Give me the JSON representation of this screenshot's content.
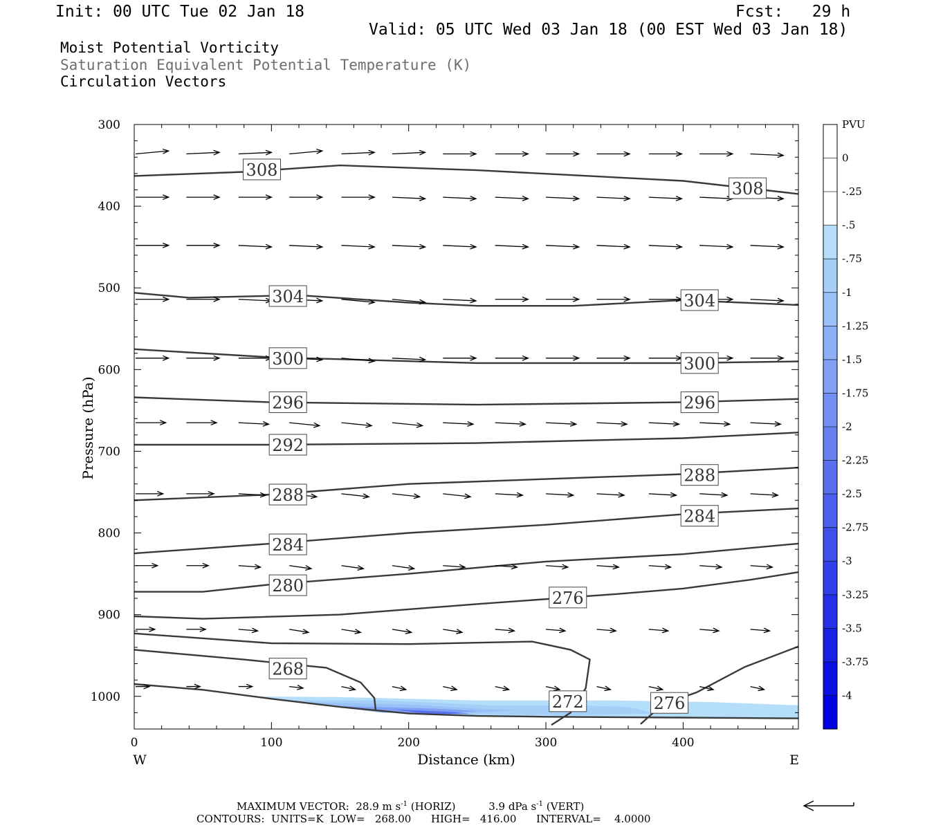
{
  "header": {
    "init": "Init: 00 UTC Tue 02 Jan 18",
    "fcst": "Fcst:   29 h",
    "valid": "Valid: 05 UTC Wed 03 Jan 18 (00 EST Wed 03 Jan 18)"
  },
  "fields": {
    "line1": "Moist Potential Vorticity",
    "line2": "Saturation Equivalent Potential Temperature (K)",
    "line3": "Circulation Vectors"
  },
  "footer": {
    "max_vector_label": "MAXIMUM VECTOR:",
    "max_horiz": "28.9 m s",
    "horiz_tag": "(HORIZ)",
    "max_vert": "3.9 dPa s",
    "vert_tag": "(VERT)",
    "exponent": "-1",
    "contours": "CONTOURS:  UNITS=K  LOW=   268.00      HIGH=   416.00      INTERVAL=    4.0000"
  },
  "colors": {
    "contour": "#3a3a3a",
    "vector": "#000000",
    "pv_shades": [
      "#ffffff",
      "#ffffff",
      "#b4defa",
      "#a6cff8",
      "#99c0f7",
      "#8cb0f5",
      "#7fa0f3",
      "#7290f1",
      "#6580ef",
      "#5870ed",
      "#4b60ec",
      "#3e50ea",
      "#3140e8",
      "#2430e6",
      "#1820e4",
      "#0b10e2",
      "#0000e0"
    ]
  },
  "chart_data": {
    "type": "cross-section",
    "xlabel": "Distance (km)",
    "ylabel": "Pressure (hPa)",
    "xlim": [
      0,
      484
    ],
    "ylim": [
      300,
      1040
    ],
    "y_scale": "linear, inverted",
    "x_ticks": [
      0,
      100,
      200,
      300,
      400
    ],
    "y_ticks": [
      300,
      400,
      500,
      600,
      700,
      800,
      900,
      1000
    ],
    "x_end_labels": {
      "left": "W",
      "right": "E"
    },
    "colorbar": {
      "title": "PVU",
      "labels": [
        "0",
        "-.25",
        "-.5",
        "-.75",
        "-1",
        "-1.25",
        "-1.5",
        "-1.75",
        "-2",
        "-2.25",
        "-2.5",
        "-2.75",
        "-3",
        "-3.25",
        "-3.5",
        "-3.75",
        "-4"
      ]
    },
    "theta_contours": [
      {
        "label": "308",
        "points": [
          [
            0,
            363
          ],
          [
            80,
            358
          ],
          [
            150,
            350
          ],
          [
            250,
            356
          ],
          [
            400,
            369
          ],
          [
            484,
            385
          ]
        ],
        "labels_at": [
          [
            93,
            355
          ],
          [
            447,
            378
          ]
        ]
      },
      {
        "label": "304",
        "points": [
          [
            0,
            506
          ],
          [
            40,
            512
          ],
          [
            120,
            509
          ],
          [
            200,
            518
          ],
          [
            250,
            522
          ],
          [
            320,
            522
          ],
          [
            400,
            515
          ],
          [
            484,
            521
          ]
        ],
        "labels_at": [
          [
            112,
            510
          ],
          [
            412,
            515
          ]
        ]
      },
      {
        "label": "300",
        "points": [
          [
            0,
            575
          ],
          [
            100,
            585
          ],
          [
            250,
            592
          ],
          [
            400,
            592
          ],
          [
            484,
            590
          ]
        ],
        "labels_at": [
          [
            112,
            586
          ],
          [
            412,
            592
          ]
        ]
      },
      {
        "label": "296",
        "points": [
          [
            0,
            634
          ],
          [
            100,
            640
          ],
          [
            250,
            643
          ],
          [
            400,
            640
          ],
          [
            484,
            636
          ]
        ],
        "labels_at": [
          [
            112,
            640
          ],
          [
            412,
            640
          ]
        ]
      },
      {
        "label": "292",
        "points": [
          [
            0,
            692
          ],
          [
            100,
            692
          ],
          [
            250,
            690
          ],
          [
            400,
            684
          ],
          [
            484,
            677
          ]
        ],
        "labels_at": [
          [
            112,
            692
          ]
        ]
      },
      {
        "label": "288",
        "points": [
          [
            0,
            760
          ],
          [
            100,
            753
          ],
          [
            200,
            740
          ],
          [
            300,
            734
          ],
          [
            400,
            728
          ],
          [
            484,
            720
          ]
        ],
        "labels_at": [
          [
            112,
            753
          ],
          [
            412,
            729
          ]
        ]
      },
      {
        "label": "284",
        "points": [
          [
            0,
            825
          ],
          [
            100,
            813
          ],
          [
            200,
            800
          ],
          [
            300,
            790
          ],
          [
            400,
            777
          ],
          [
            484,
            770
          ]
        ],
        "labels_at": [
          [
            112,
            814
          ],
          [
            412,
            779
          ]
        ]
      },
      {
        "label": "280",
        "points": [
          [
            0,
            872
          ],
          [
            50,
            872
          ],
          [
            100,
            863
          ],
          [
            200,
            850
          ],
          [
            300,
            835
          ],
          [
            400,
            826
          ],
          [
            484,
            813
          ]
        ],
        "labels_at": [
          [
            112,
            864
          ]
        ]
      },
      {
        "label": "276",
        "points": [
          [
            0,
            902
          ],
          [
            50,
            905
          ],
          [
            150,
            900
          ],
          [
            250,
            887
          ],
          [
            350,
            875
          ],
          [
            400,
            868
          ],
          [
            450,
            857
          ],
          [
            484,
            848
          ]
        ],
        "labels_at": [
          [
            316,
            879
          ],
          [
            390,
            1008
          ]
        ]
      },
      {
        "label": "272",
        "points": [
          [
            0,
            923
          ],
          [
            100,
            935
          ],
          [
            200,
            936
          ],
          [
            290,
            933
          ],
          [
            318,
            943
          ],
          [
            332,
            955
          ],
          [
            329,
            990
          ],
          [
            318,
            1020
          ],
          [
            304,
            1035
          ]
        ],
        "labels_at": [
          [
            316,
            1006
          ]
        ]
      },
      {
        "label": "268",
        "points": [
          [
            0,
            943
          ],
          [
            80,
            955
          ],
          [
            140,
            965
          ],
          [
            165,
            983
          ],
          [
            175,
            1002
          ],
          [
            176,
            1018
          ]
        ],
        "labels_at": [
          [
            112,
            966
          ]
        ]
      },
      {
        "label": "276 (lower)",
        "points": [
          [
            369,
            1034
          ],
          [
            385,
            1010
          ],
          [
            410,
            995
          ],
          [
            445,
            964
          ],
          [
            484,
            939
          ]
        ],
        "labels_at": []
      },
      {
        "label": "surface",
        "points": [
          [
            0,
            985
          ],
          [
            50,
            992
          ],
          [
            100,
            1003
          ],
          [
            150,
            1013
          ],
          [
            200,
            1021
          ],
          [
            250,
            1024
          ],
          [
            300,
            1025
          ],
          [
            400,
            1026
          ],
          [
            484,
            1027
          ]
        ],
        "labels_at": []
      }
    ],
    "pv_region": {
      "value_range": [
        -2.25,
        -0.25
      ],
      "layers": [
        {
          "value": -0.25,
          "points": [
            [
              80,
              1000
            ],
            [
              150,
              1001
            ],
            [
              250,
              1005
            ],
            [
              350,
              1005
            ],
            [
              420,
              1007
            ],
            [
              484,
              1011
            ],
            [
              484,
              1027
            ],
            [
              300,
              1025
            ],
            [
              200,
              1021
            ],
            [
              100,
              1003
            ]
          ]
        },
        {
          "value": -0.5,
          "points": [
            [
              110,
              1005
            ],
            [
              180,
              1005
            ],
            [
              260,
              1011
            ],
            [
              320,
              1011
            ],
            [
              360,
              1013
            ],
            [
              380,
              1021
            ],
            [
              320,
              1023
            ],
            [
              230,
              1022
            ],
            [
              160,
              1015
            ]
          ]
        },
        {
          "value": -0.75,
          "points": [
            [
              120,
              1007
            ],
            [
              200,
              1010
            ],
            [
              260,
              1016
            ],
            [
              280,
              1017
            ],
            [
              240,
              1021
            ],
            [
              180,
              1020
            ]
          ]
        },
        {
          "value": -1.25,
          "points": [
            [
              150,
              1012
            ],
            [
              220,
              1015
            ],
            [
              250,
              1018
            ],
            [
              220,
              1021
            ],
            [
              180,
              1019
            ]
          ]
        },
        {
          "value": -2.0,
          "points": [
            [
              190,
              1016
            ],
            [
              230,
              1019
            ],
            [
              245,
              1021
            ],
            [
              215,
              1022
            ]
          ]
        }
      ]
    },
    "vectors": [
      {
        "y": 336,
        "xs": [
          0,
          37,
          75,
          112,
          150,
          187,
          224,
          262,
          299,
          336,
          374,
          411,
          448
        ],
        "dy": [
          -2,
          -1,
          -1,
          -2,
          -1,
          -1,
          0,
          0,
          0,
          0,
          0,
          0,
          1
        ],
        "len": 24
      },
      {
        "y": 389,
        "xs": [
          0,
          37,
          75,
          112,
          150,
          187,
          224,
          262,
          299,
          336,
          374,
          411,
          448
        ],
        "dy": [
          0,
          0,
          0,
          0,
          0,
          1,
          1,
          1,
          1,
          1,
          1,
          1,
          1
        ],
        "len": 24
      },
      {
        "y": 448,
        "xs": [
          0,
          37,
          75,
          112,
          150,
          187,
          224,
          262,
          299,
          336,
          374,
          411,
          448
        ],
        "dy": [
          0,
          0,
          1,
          1,
          1,
          1,
          1,
          1,
          1,
          1,
          1,
          1,
          1
        ],
        "len": 24
      },
      {
        "y": 514,
        "xs": [
          0,
          37,
          75,
          112,
          150,
          187,
          224,
          262,
          299,
          336,
          374,
          411,
          448
        ],
        "dy": [
          0,
          0,
          1,
          1,
          2,
          2,
          1,
          0,
          0,
          0,
          0,
          0,
          1
        ],
        "len": 24
      },
      {
        "y": 586,
        "xs": [
          0,
          37,
          75,
          112,
          150,
          187,
          224,
          262,
          299,
          336,
          374,
          411,
          448
        ],
        "dy": [
          0,
          0,
          0,
          1,
          2,
          1,
          0,
          0,
          0,
          0,
          0,
          0,
          0
        ],
        "len": 24
      },
      {
        "y": 665,
        "xs": [
          0,
          37,
          75,
          112,
          150,
          187,
          224,
          262,
          299,
          336,
          374,
          411,
          448
        ],
        "dy": [
          0,
          0,
          1,
          2,
          2,
          2,
          1,
          1,
          1,
          1,
          1,
          1,
          1
        ],
        "len": 22
      },
      {
        "y": 752,
        "xs": [
          0,
          37,
          75,
          112,
          150,
          187,
          224,
          262,
          299,
          336,
          374,
          411,
          448
        ],
        "dy": [
          0,
          0,
          1,
          2,
          2,
          2,
          2,
          1,
          1,
          1,
          1,
          1,
          1
        ],
        "len": 20
      },
      {
        "y": 840,
        "xs": [
          0,
          37,
          75,
          112,
          150,
          187,
          224,
          262,
          299,
          336,
          374,
          411,
          448
        ],
        "dy": [
          0,
          0,
          1,
          2,
          2,
          2,
          1,
          1,
          1,
          1,
          1,
          1,
          1
        ],
        "len": 16
      },
      {
        "y": 918,
        "xs": [
          0,
          37,
          75,
          112,
          150,
          187,
          224,
          262,
          299,
          336,
          374,
          411,
          448
        ],
        "dy": [
          0,
          0,
          1,
          2,
          2,
          2,
          2,
          1,
          1,
          1,
          1,
          1,
          1
        ],
        "len": 14
      },
      {
        "y": 988,
        "xs": [
          0,
          37,
          75,
          112,
          150,
          187,
          224,
          262,
          299,
          336,
          374,
          411,
          448
        ],
        "dy": [
          0,
          0,
          0,
          1,
          2,
          2,
          2,
          2,
          2,
          2,
          2,
          2,
          2
        ],
        "len": 10
      }
    ]
  }
}
